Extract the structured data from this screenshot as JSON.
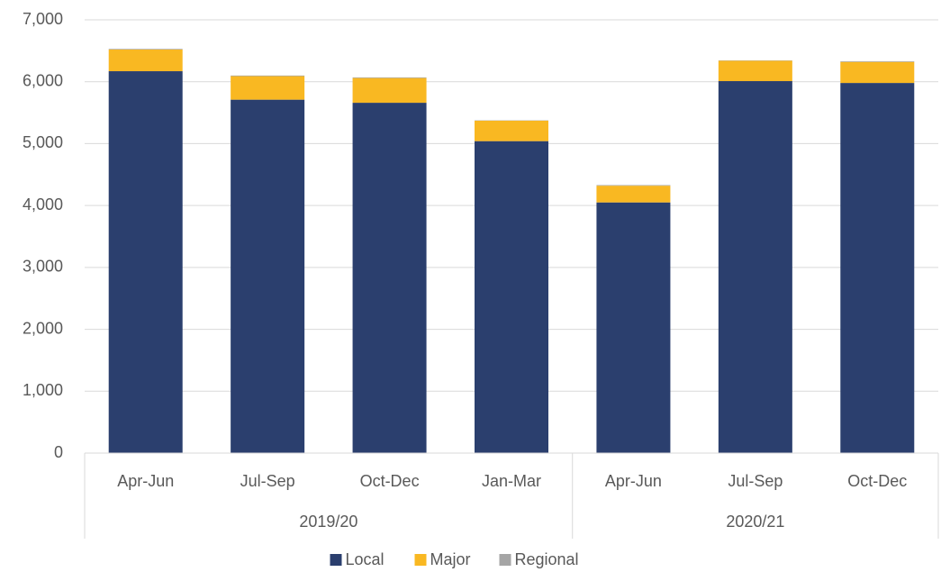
{
  "chart_data": {
    "type": "stacked_bar",
    "groups": [
      {
        "name": "2019/20",
        "categories": [
          "Apr-Jun",
          "Jul-Sep",
          "Oct-Dec",
          "Jan-Mar"
        ]
      },
      {
        "name": "2020/21",
        "categories": [
          "Apr-Jun",
          "Jul-Sep",
          "Oct-Dec"
        ]
      }
    ],
    "series": [
      {
        "name": "Local",
        "color": "#2b3f6e",
        "values": [
          6170,
          5710,
          5660,
          5040,
          4050,
          6010,
          5980
        ]
      },
      {
        "name": "Major",
        "color": "#f9b822",
        "values": [
          350,
          380,
          400,
          330,
          270,
          330,
          340
        ]
      },
      {
        "name": "Regional",
        "color": "#a5a5a5",
        "values": [
          10,
          10,
          10,
          5,
          10,
          5,
          10
        ]
      }
    ],
    "ylim": [
      0,
      7000
    ],
    "yticks": [
      0,
      {
        "value": 1000,
        "label": "1,000"
      },
      {
        "value": 2000,
        "label": "2,000"
      },
      {
        "value": 3000,
        "label": "3,000"
      },
      {
        "value": 4000,
        "label": "4,000"
      },
      {
        "value": 5000,
        "label": "5,000"
      },
      {
        "value": 6000,
        "label": "6,000"
      },
      {
        "value": 7000,
        "label": "7,000"
      }
    ],
    "grid": true,
    "legend": "bottom"
  }
}
